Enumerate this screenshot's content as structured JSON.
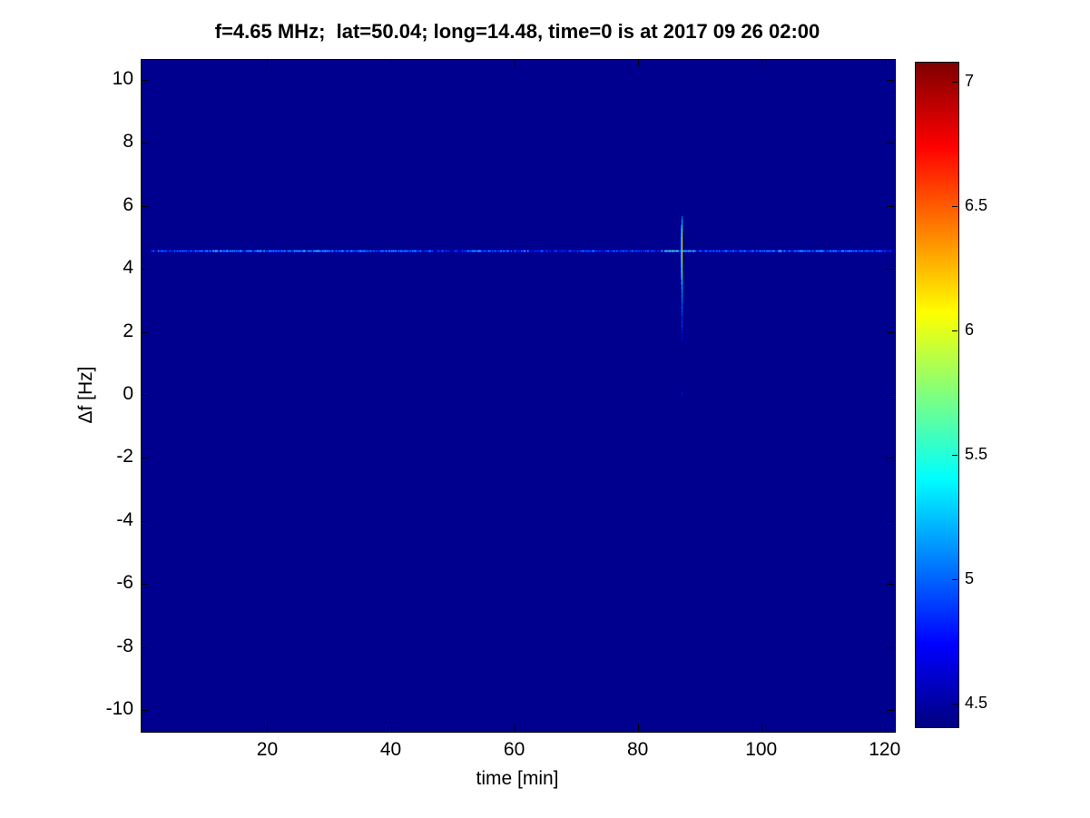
{
  "title": "f=4.65 MHz;  lat=50.04; long=14.48, time=0 is at 2017 09 26 02:00",
  "chart_data": {
    "type": "heatmap",
    "title": "f=4.65 MHz;  lat=50.04; long=14.48, time=0 is at 2017 09 26 02:00",
    "xlabel": "time [min]",
    "ylabel": "Δf [Hz]",
    "x_ticks": [
      20,
      40,
      60,
      80,
      100,
      120
    ],
    "y_ticks": [
      10,
      8,
      6,
      4,
      2,
      0,
      -2,
      -4,
      -6,
      -8,
      -10
    ],
    "xlim": [
      -0.5,
      121.5
    ],
    "ylim": [
      -10.66,
      10.66
    ],
    "caxis": [
      4.41,
      7.08
    ],
    "colormap": "jet",
    "grid": false,
    "background_value": 4.45,
    "colorbar_ticks": [
      4.5,
      5,
      5.5,
      6,
      6.5,
      7
    ],
    "features": {
      "horizontal_line": {
        "delta_f_hz": 4.6,
        "time_range_min": [
          1,
          121
        ],
        "description": "faint speckled horizontal Doppler trace at +4.6 Hz spanning the whole record",
        "segments": [
          [
            1,
            10,
            5.05
          ],
          [
            10,
            30,
            5.3
          ],
          [
            30,
            45,
            5.2
          ],
          [
            45,
            52,
            4.85
          ],
          [
            52,
            62,
            5.1
          ],
          [
            62,
            70,
            4.8
          ],
          [
            70,
            84,
            4.95
          ],
          [
            84,
            89,
            5.65
          ],
          [
            89,
            100,
            5.1
          ],
          [
            100,
            110,
            5.2
          ],
          [
            110,
            121,
            5.15
          ]
        ]
      },
      "vertical_streak": {
        "time_min": 87,
        "delta_f_range_hz": [
          1.8,
          5.7
        ],
        "peak_value": 6.15,
        "description": "bright vertical Doppler excursion near t=87 min dropping from ~5.7 Hz to ~1.8 Hz",
        "profile": [
          [
            5.7,
            5.0
          ],
          [
            5.3,
            5.7
          ],
          [
            4.9,
            6.05
          ],
          [
            4.5,
            6.15
          ],
          [
            4.0,
            5.8
          ],
          [
            3.4,
            5.3
          ],
          [
            2.6,
            4.95
          ],
          [
            1.8,
            4.7
          ]
        ],
        "isolated_dot": {
          "time_min": 87,
          "delta_f_hz": 0.1,
          "value": 4.85
        }
      }
    }
  }
}
